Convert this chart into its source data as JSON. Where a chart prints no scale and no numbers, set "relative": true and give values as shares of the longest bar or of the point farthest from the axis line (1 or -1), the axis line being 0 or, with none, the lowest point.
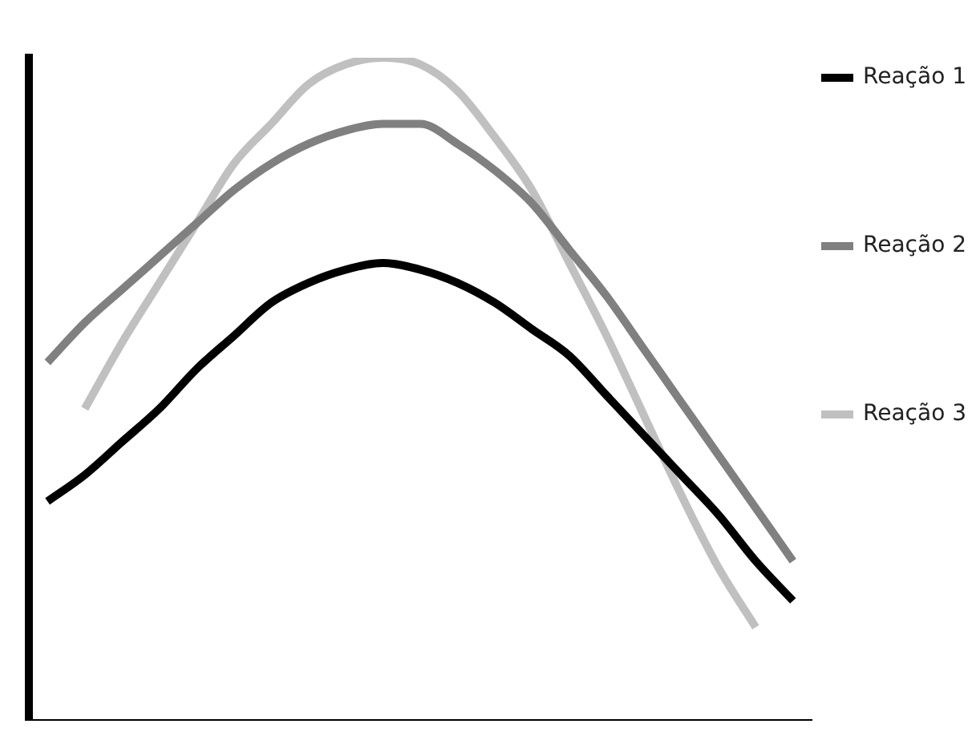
{
  "chart_data": {
    "type": "line",
    "relative": true,
    "legend": "right",
    "categories": [
      null,
      null,
      null,
      null,
      null,
      null,
      null,
      null,
      null,
      null,
      null,
      null,
      null,
      null,
      null,
      null,
      null,
      null,
      null,
      null,
      null
    ],
    "series": [
      {
        "name": "Reação 1",
        "color": "#000000",
        "values": [
          0.33,
          0.37,
          0.42,
          0.47,
          0.53,
          0.58,
          0.63,
          0.66,
          0.68,
          0.69,
          0.68,
          0.66,
          0.63,
          0.59,
          0.55,
          0.49,
          0.43,
          0.37,
          0.31,
          0.24,
          0.18
        ]
      },
      {
        "name": "Reação 2",
        "color": "#808080",
        "values": [
          0.54,
          0.6,
          0.65,
          0.7,
          0.75,
          0.8,
          0.84,
          0.87,
          0.89,
          0.9,
          0.9,
          0.87,
          0.83,
          0.78,
          0.71,
          0.64,
          0.56,
          0.48,
          0.4,
          0.32,
          0.24
        ]
      },
      {
        "name": "Reação 3",
        "color": "#c0c0c0",
        "values": [
          null,
          0.47,
          0.57,
          0.66,
          0.75,
          0.84,
          0.9,
          0.96,
          0.99,
          1,
          0.99,
          0.95,
          0.88,
          0.8,
          0.69,
          0.58,
          0.46,
          0.34,
          0.23,
          0.14,
          null
        ]
      }
    ],
    "marker": "none",
    "line_style": "solid",
    "grid": false
  }
}
